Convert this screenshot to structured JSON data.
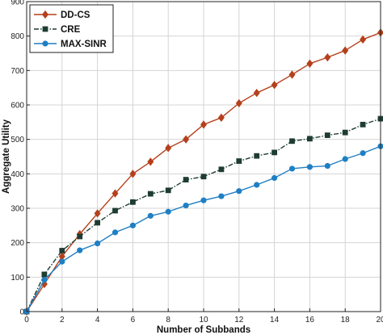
{
  "chart_data": {
    "type": "line",
    "title": "",
    "xlabel": "Number of Subbands",
    "ylabel": "Aggregate Utility",
    "xlim": [
      0,
      20
    ],
    "ylim": [
      0,
      900
    ],
    "xticks": [
      0,
      2,
      4,
      6,
      8,
      10,
      12,
      14,
      16,
      18,
      20
    ],
    "yticks": [
      0,
      100,
      200,
      300,
      400,
      500,
      600,
      700,
      800,
      900
    ],
    "xtick_labels": [
      "0",
      "2",
      "4",
      "6",
      "8",
      "10",
      "12",
      "14",
      "16",
      "18",
      "20"
    ],
    "ytick_labels": [
      "0",
      "100",
      "200",
      "300",
      "400",
      "500",
      "600",
      "700",
      "800",
      "900"
    ],
    "grid": true,
    "legend_position": "top-left",
    "x": [
      0,
      1,
      2,
      3,
      4,
      5,
      6,
      7,
      8,
      9,
      10,
      11,
      12,
      13,
      14,
      15,
      16,
      17,
      18,
      19,
      20
    ],
    "series": [
      {
        "name": "DD-CS",
        "color": "#b5401c",
        "marker": "diamond",
        "line_style": "solid",
        "values": [
          0,
          80,
          160,
          225,
          285,
          343,
          400,
          435,
          475,
          500,
          543,
          563,
          605,
          635,
          658,
          688,
          720,
          738,
          758,
          790,
          810
        ]
      },
      {
        "name": "CRE",
        "color": "#1e3d32",
        "marker": "square",
        "line_style": "dash-dot",
        "values": [
          0,
          108,
          177,
          218,
          258,
          293,
          318,
          342,
          352,
          383,
          392,
          413,
          437,
          452,
          462,
          495,
          502,
          512,
          520,
          543,
          560
        ]
      },
      {
        "name": "MAX-SINR",
        "color": "#1f7fc4",
        "marker": "circle",
        "line_style": "solid",
        "values": [
          0,
          92,
          145,
          178,
          198,
          230,
          250,
          278,
          290,
          308,
          323,
          335,
          350,
          368,
          388,
          415,
          420,
          423,
          443,
          460,
          480
        ]
      }
    ]
  }
}
